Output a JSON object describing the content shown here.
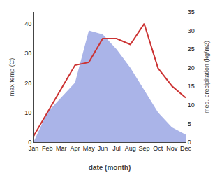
{
  "chart_data": {
    "type": "line",
    "categories": [
      "Jan",
      "Feb",
      "Mar",
      "Apr",
      "May",
      "Jun",
      "Jul",
      "Aug",
      "Sep",
      "Oct",
      "Nov",
      "Dec"
    ],
    "series": [
      {
        "type": "area",
        "axis": "y2",
        "color": "#aab4e8",
        "values": [
          0,
          8,
          12,
          16,
          30,
          29,
          25,
          20,
          14,
          8,
          4,
          2
        ]
      },
      {
        "type": "line",
        "color": "#cc3333",
        "values": [
          2,
          10,
          18,
          26,
          27,
          35,
          35,
          33,
          40,
          25,
          19,
          15
        ]
      }
    ],
    "xlabel": "date (month)",
    "ylabel": "max temp (C)",
    "y2label": "med. precipitation (kg/m2)",
    "ylim": [
      0,
      44
    ],
    "yticks": [
      0,
      10,
      20,
      30,
      40
    ],
    "y2lim": [
      0,
      35
    ],
    "y2ticks": [
      0,
      5,
      10,
      15,
      20,
      25,
      30,
      35
    ],
    "grid": false
  }
}
